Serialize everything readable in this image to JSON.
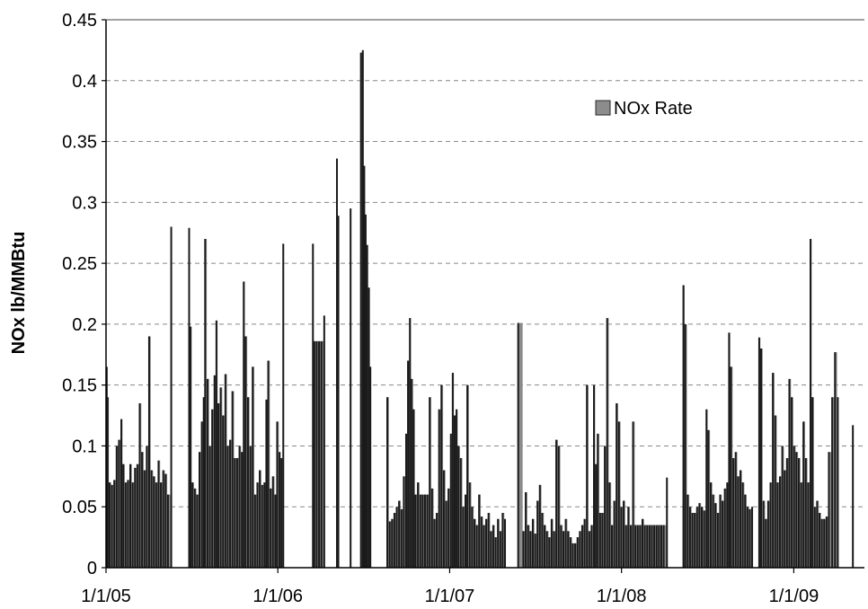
{
  "chart_data": {
    "type": "bar",
    "title": "",
    "xlabel": "",
    "ylabel": "NOx lb/MMBtu",
    "ylim": [
      0,
      0.45
    ],
    "y_ticks": [
      "0",
      "0.05",
      "0.1",
      "0.15",
      "0.2",
      "0.25",
      "0.3",
      "0.35",
      "0.4",
      "0.45"
    ],
    "y_tick_values": [
      0,
      0.05,
      0.1,
      0.15,
      0.2,
      0.25,
      0.3,
      0.35,
      0.4,
      0.45
    ],
    "x_ticks": [
      "1/1/05",
      "1/1/06",
      "1/1/07",
      "1/1/08",
      "1/1/09"
    ],
    "x_tick_dates": [
      "2005-01-01",
      "2006-01-01",
      "2007-01-01",
      "2008-01-01",
      "2009-01-01"
    ],
    "xlim": [
      "2005-01-01",
      "2009-05-31"
    ],
    "grid": "horizontal dashed",
    "legend_position": "top-right",
    "colors": {
      "bar": "#8c8c8c",
      "bar_edge": "#2a2a2a",
      "spike": "#1a1a1a",
      "grid": "#888888"
    },
    "series": [
      {
        "name": "NOx Rate",
        "points": [
          [
            "2005-01-01",
            0.165
          ],
          [
            "2005-01-03",
            0.14
          ],
          [
            "2005-01-07",
            0.07
          ],
          [
            "2005-01-12",
            0.068
          ],
          [
            "2005-01-17",
            0.072
          ],
          [
            "2005-01-22",
            0.1
          ],
          [
            "2005-01-27",
            0.105
          ],
          [
            "2005-02-01",
            0.122
          ],
          [
            "2005-02-05",
            0.085
          ],
          [
            "2005-02-10",
            0.07
          ],
          [
            "2005-02-15",
            0.072
          ],
          [
            "2005-02-20",
            0.085
          ],
          [
            "2005-02-25",
            0.07
          ],
          [
            "2005-03-02",
            0.082
          ],
          [
            "2005-03-07",
            0.085
          ],
          [
            "2005-03-12",
            0.135
          ],
          [
            "2005-03-17",
            0.095
          ],
          [
            "2005-03-22",
            0.08
          ],
          [
            "2005-03-27",
            0.1
          ],
          [
            "2005-04-01",
            0.19
          ],
          [
            "2005-04-06",
            0.08
          ],
          [
            "2005-04-11",
            0.075
          ],
          [
            "2005-04-16",
            0.07
          ],
          [
            "2005-04-21",
            0.088
          ],
          [
            "2005-04-26",
            0.07
          ],
          [
            "2005-05-01",
            0.08
          ],
          [
            "2005-05-06",
            0.077
          ],
          [
            "2005-05-11",
            0.06
          ],
          [
            "2005-05-18",
            0.28
          ],
          [
            "2005-06-25",
            0.279
          ],
          [
            "2005-06-28",
            0.198
          ],
          [
            "2005-07-02",
            0.07
          ],
          [
            "2005-07-07",
            0.065
          ],
          [
            "2005-07-12",
            0.06
          ],
          [
            "2005-07-17",
            0.095
          ],
          [
            "2005-07-22",
            0.12
          ],
          [
            "2005-07-26",
            0.14
          ],
          [
            "2005-07-29",
            0.27
          ],
          [
            "2005-08-03",
            0.155
          ],
          [
            "2005-08-08",
            0.1
          ],
          [
            "2005-08-13",
            0.13
          ],
          [
            "2005-08-18",
            0.158
          ],
          [
            "2005-08-22",
            0.203
          ],
          [
            "2005-08-26",
            0.135
          ],
          [
            "2005-08-31",
            0.148
          ],
          [
            "2005-09-05",
            0.125
          ],
          [
            "2005-09-10",
            0.159
          ],
          [
            "2005-09-15",
            0.1
          ],
          [
            "2005-09-20",
            0.105
          ],
          [
            "2005-09-25",
            0.145
          ],
          [
            "2005-09-30",
            0.09
          ],
          [
            "2005-10-05",
            0.09
          ],
          [
            "2005-10-10",
            0.1
          ],
          [
            "2005-10-15",
            0.095
          ],
          [
            "2005-10-19",
            0.235
          ],
          [
            "2005-10-23",
            0.19
          ],
          [
            "2005-10-28",
            0.14
          ],
          [
            "2005-11-02",
            0.1
          ],
          [
            "2005-11-07",
            0.165
          ],
          [
            "2005-11-12",
            0.06
          ],
          [
            "2005-11-17",
            0.07
          ],
          [
            "2005-11-22",
            0.08
          ],
          [
            "2005-11-27",
            0.068
          ],
          [
            "2005-12-02",
            0.07
          ],
          [
            "2005-12-06",
            0.138
          ],
          [
            "2005-12-10",
            0.17
          ],
          [
            "2005-12-15",
            0.065
          ],
          [
            "2005-12-20",
            0.075
          ],
          [
            "2005-12-25",
            0.06
          ],
          [
            "2005-12-29",
            0.12
          ],
          [
            "2006-01-03",
            0.095
          ],
          [
            "2006-01-07",
            0.09
          ],
          [
            "2006-01-11",
            0.266
          ],
          [
            "2006-03-15",
            0.266
          ],
          [
            "2006-03-18",
            0.186
          ],
          [
            "2006-03-23",
            0.186
          ],
          [
            "2006-03-28",
            0.186
          ],
          [
            "2006-04-02",
            0.186
          ],
          [
            "2006-04-08",
            0.207
          ],
          [
            "2006-05-05",
            0.336
          ],
          [
            "2006-05-08",
            0.289
          ],
          [
            "2006-06-03",
            0.295
          ],
          [
            "2006-06-25",
            0.423
          ],
          [
            "2006-06-29",
            0.425
          ],
          [
            "2006-07-02",
            0.33
          ],
          [
            "2006-07-05",
            0.29
          ],
          [
            "2006-07-08",
            0.265
          ],
          [
            "2006-07-12",
            0.23
          ],
          [
            "2006-07-15",
            0.165
          ],
          [
            "2006-08-20",
            0.14
          ],
          [
            "2006-08-25",
            0.038
          ],
          [
            "2006-08-30",
            0.04
          ],
          [
            "2006-09-04",
            0.045
          ],
          [
            "2006-09-09",
            0.05
          ],
          [
            "2006-09-14",
            0.055
          ],
          [
            "2006-09-19",
            0.048
          ],
          [
            "2006-09-24",
            0.075
          ],
          [
            "2006-09-29",
            0.11
          ],
          [
            "2006-10-03",
            0.17
          ],
          [
            "2006-10-07",
            0.205
          ],
          [
            "2006-10-11",
            0.155
          ],
          [
            "2006-10-15",
            0.13
          ],
          [
            "2006-10-19",
            0.06
          ],
          [
            "2006-10-24",
            0.07
          ],
          [
            "2006-10-29",
            0.06
          ],
          [
            "2006-11-03",
            0.06
          ],
          [
            "2006-11-08",
            0.06
          ],
          [
            "2006-11-13",
            0.06
          ],
          [
            "2006-11-18",
            0.14
          ],
          [
            "2006-11-23",
            0.065
          ],
          [
            "2006-11-28",
            0.04
          ],
          [
            "2006-12-03",
            0.045
          ],
          [
            "2006-12-08",
            0.13
          ],
          [
            "2006-12-13",
            0.15
          ],
          [
            "2006-12-18",
            0.08
          ],
          [
            "2006-12-23",
            0.055
          ],
          [
            "2006-12-28",
            0.065
          ],
          [
            "2007-01-02",
            0.11
          ],
          [
            "2007-01-06",
            0.16
          ],
          [
            "2007-01-10",
            0.125
          ],
          [
            "2007-01-14",
            0.13
          ],
          [
            "2007-01-18",
            0.1
          ],
          [
            "2007-01-23",
            0.09
          ],
          [
            "2007-01-28",
            0.05
          ],
          [
            "2007-02-02",
            0.06
          ],
          [
            "2007-02-06",
            0.15
          ],
          [
            "2007-02-11",
            0.07
          ],
          [
            "2007-02-16",
            0.05
          ],
          [
            "2007-02-21",
            0.04
          ],
          [
            "2007-02-26",
            0.035
          ],
          [
            "2007-03-03",
            0.06
          ],
          [
            "2007-03-08",
            0.042
          ],
          [
            "2007-03-13",
            0.035
          ],
          [
            "2007-03-18",
            0.04
          ],
          [
            "2007-03-23",
            0.045
          ],
          [
            "2007-03-28",
            0.03
          ],
          [
            "2007-04-02",
            0.035
          ],
          [
            "2007-04-07",
            0.025
          ],
          [
            "2007-04-12",
            0.04
          ],
          [
            "2007-04-17",
            0.03
          ],
          [
            "2007-04-22",
            0.045
          ],
          [
            "2007-04-27",
            0.04
          ],
          [
            "2007-05-25",
            0.201
          ],
          [
            "2007-06-05",
            0.03
          ],
          [
            "2007-06-10",
            0.062
          ],
          [
            "2007-06-15",
            0.035
          ],
          [
            "2007-06-20",
            0.03
          ],
          [
            "2007-06-25",
            0.04
          ],
          [
            "2007-06-30",
            0.028
          ],
          [
            "2007-07-05",
            0.055
          ],
          [
            "2007-07-10",
            0.068
          ],
          [
            "2007-07-15",
            0.045
          ],
          [
            "2007-07-20",
            0.035
          ],
          [
            "2007-07-25",
            0.03
          ],
          [
            "2007-07-30",
            0.025
          ],
          [
            "2007-08-04",
            0.04
          ],
          [
            "2007-08-09",
            0.03
          ],
          [
            "2007-08-14",
            0.105
          ],
          [
            "2007-08-19",
            0.1
          ],
          [
            "2007-08-24",
            0.035
          ],
          [
            "2007-08-29",
            0.03
          ],
          [
            "2007-09-03",
            0.04
          ],
          [
            "2007-09-08",
            0.03
          ],
          [
            "2007-09-13",
            0.025
          ],
          [
            "2007-09-18",
            0.02
          ],
          [
            "2007-09-23",
            0.02
          ],
          [
            "2007-09-28",
            0.025
          ],
          [
            "2007-10-03",
            0.03
          ],
          [
            "2007-10-08",
            0.035
          ],
          [
            "2007-10-13",
            0.04
          ],
          [
            "2007-10-18",
            0.15
          ],
          [
            "2007-10-23",
            0.03
          ],
          [
            "2007-10-28",
            0.035
          ],
          [
            "2007-11-02",
            0.15
          ],
          [
            "2007-11-06",
            0.085
          ],
          [
            "2007-11-10",
            0.11
          ],
          [
            "2007-11-15",
            0.045
          ],
          [
            "2007-11-20",
            0.045
          ],
          [
            "2007-11-25",
            0.1
          ],
          [
            "2007-11-30",
            0.205
          ],
          [
            "2007-12-05",
            0.07
          ],
          [
            "2007-12-10",
            0.035
          ],
          [
            "2007-12-15",
            0.055
          ],
          [
            "2007-12-20",
            0.135
          ],
          [
            "2007-12-25",
            0.12
          ],
          [
            "2007-12-30",
            0.05
          ],
          [
            "2008-01-04",
            0.055
          ],
          [
            "2008-01-09",
            0.035
          ],
          [
            "2008-01-14",
            0.05
          ],
          [
            "2008-01-19",
            0.035
          ],
          [
            "2008-01-24",
            0.12
          ],
          [
            "2008-01-29",
            0.035
          ],
          [
            "2008-02-03",
            0.035
          ],
          [
            "2008-02-08",
            0.035
          ],
          [
            "2008-02-13",
            0.04
          ],
          [
            "2008-02-18",
            0.035
          ],
          [
            "2008-02-23",
            0.035
          ],
          [
            "2008-02-28",
            0.035
          ],
          [
            "2008-03-04",
            0.035
          ],
          [
            "2008-03-09",
            0.035
          ],
          [
            "2008-03-14",
            0.035
          ],
          [
            "2008-03-19",
            0.035
          ],
          [
            "2008-03-24",
            0.035
          ],
          [
            "2008-03-29",
            0.035
          ],
          [
            "2008-04-05",
            0.074
          ],
          [
            "2008-05-10",
            0.232
          ],
          [
            "2008-05-14",
            0.2
          ],
          [
            "2008-05-19",
            0.06
          ],
          [
            "2008-05-24",
            0.05
          ],
          [
            "2008-05-29",
            0.045
          ],
          [
            "2008-06-03",
            0.045
          ],
          [
            "2008-06-08",
            0.05
          ],
          [
            "2008-06-13",
            0.053
          ],
          [
            "2008-06-18",
            0.05
          ],
          [
            "2008-06-23",
            0.047
          ],
          [
            "2008-06-28",
            0.13
          ],
          [
            "2008-07-02",
            0.113
          ],
          [
            "2008-07-07",
            0.07
          ],
          [
            "2008-07-12",
            0.06
          ],
          [
            "2008-07-17",
            0.053
          ],
          [
            "2008-07-22",
            0.045
          ],
          [
            "2008-07-27",
            0.06
          ],
          [
            "2008-08-01",
            0.055
          ],
          [
            "2008-08-06",
            0.065
          ],
          [
            "2008-08-11",
            0.07
          ],
          [
            "2008-08-15",
            0.193
          ],
          [
            "2008-08-19",
            0.165
          ],
          [
            "2008-08-24",
            0.09
          ],
          [
            "2008-08-29",
            0.095
          ],
          [
            "2008-09-03",
            0.075
          ],
          [
            "2008-09-08",
            0.08
          ],
          [
            "2008-09-13",
            0.07
          ],
          [
            "2008-09-18",
            0.06
          ],
          [
            "2008-09-23",
            0.05
          ],
          [
            "2008-09-28",
            0.048
          ],
          [
            "2008-10-03",
            0.05
          ],
          [
            "2008-10-18",
            0.189
          ],
          [
            "2008-10-22",
            0.18
          ],
          [
            "2008-10-27",
            0.055
          ],
          [
            "2008-11-01",
            0.04
          ],
          [
            "2008-11-06",
            0.055
          ],
          [
            "2008-11-11",
            0.07
          ],
          [
            "2008-11-16",
            0.16
          ],
          [
            "2008-11-21",
            0.125
          ],
          [
            "2008-11-26",
            0.07
          ],
          [
            "2008-12-01",
            0.075
          ],
          [
            "2008-12-06",
            0.1
          ],
          [
            "2008-12-11",
            0.08
          ],
          [
            "2008-12-16",
            0.09
          ],
          [
            "2008-12-21",
            0.155
          ],
          [
            "2008-12-26",
            0.14
          ],
          [
            "2008-12-31",
            0.1
          ],
          [
            "2009-01-05",
            0.095
          ],
          [
            "2009-01-10",
            0.09
          ],
          [
            "2009-01-15",
            0.07
          ],
          [
            "2009-01-20",
            0.12
          ],
          [
            "2009-01-25",
            0.09
          ],
          [
            "2009-01-30",
            0.07
          ],
          [
            "2009-02-04",
            0.27
          ],
          [
            "2009-02-08",
            0.14
          ],
          [
            "2009-02-13",
            0.05
          ],
          [
            "2009-02-18",
            0.055
          ],
          [
            "2009-02-23",
            0.045
          ],
          [
            "2009-02-28",
            0.04
          ],
          [
            "2009-03-05",
            0.04
          ],
          [
            "2009-03-10",
            0.042
          ],
          [
            "2009-03-15",
            0.095
          ],
          [
            "2009-03-22",
            0.14
          ],
          [
            "2009-03-28",
            0.177
          ],
          [
            "2009-04-03",
            0.14
          ],
          [
            "2009-05-05",
            0.117
          ]
        ]
      }
    ]
  }
}
